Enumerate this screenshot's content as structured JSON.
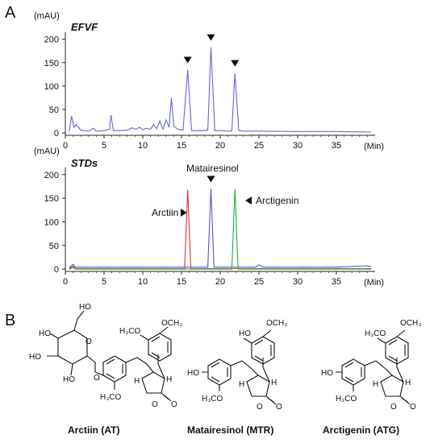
{
  "panels": {
    "a": "A",
    "b": "B"
  },
  "chart_data": [
    {
      "type": "line",
      "title": "EFVF",
      "ylabel": "(mAU)",
      "xlabel": "(Min)",
      "xlim": [
        0,
        40
      ],
      "ylim": [
        -5,
        215
      ],
      "xticks": [
        0,
        5,
        10,
        15,
        20,
        25,
        30,
        35
      ],
      "yticks": [
        0,
        50,
        100,
        150,
        200
      ],
      "markers": [
        15.8,
        18.8,
        21.9
      ],
      "series": [
        {
          "color": "#6666dd",
          "x": [
            0.5,
            0.8,
            1.1,
            1.4,
            2,
            3,
            3.6,
            4,
            5,
            5.7,
            5.9,
            6.2,
            7,
            8,
            8.6,
            9.1,
            9.6,
            10,
            10.4,
            11,
            11.4,
            11.8,
            12.2,
            12.6,
            13,
            13.4,
            13.7,
            14,
            14.5,
            15.2,
            15.8,
            16.3,
            17,
            18,
            18.4,
            18.8,
            19.3,
            20,
            21,
            21.5,
            21.9,
            22.4,
            23,
            25,
            30,
            35,
            39.5
          ],
          "y": [
            3,
            36,
            12,
            18,
            6,
            4,
            10,
            4,
            5,
            8,
            38,
            5,
            5,
            6,
            11,
            8,
            12,
            7,
            10,
            8,
            18,
            9,
            25,
            8,
            28,
            12,
            75,
            15,
            8,
            6,
            135,
            5,
            5,
            5,
            6,
            183,
            5,
            5,
            4,
            4,
            128,
            5,
            4,
            4,
            3,
            3,
            2
          ]
        }
      ]
    },
    {
      "type": "line",
      "title": "STDs",
      "ylabel": "(mAU)",
      "xlabel": "(Min)",
      "xlim": [
        0,
        40
      ],
      "ylim": [
        -5,
        215
      ],
      "xticks": [
        0,
        5,
        10,
        15,
        20,
        25,
        30,
        35
      ],
      "yticks": [
        0,
        50,
        100,
        150,
        200
      ],
      "markers": [
        18.8
      ],
      "annotations": [
        {
          "text": "Arctiin",
          "x": 15.8,
          "y": 100
        },
        {
          "text": "Matairesinol",
          "x": 18.8,
          "y": 190
        },
        {
          "text": "Arctigenin",
          "x": 21.9,
          "y": 150
        }
      ],
      "series": [
        {
          "color": "#dd3333",
          "x": [
            0.5,
            1,
            1.3,
            5,
            10,
            15.4,
            15.8,
            16.2,
            20,
            30,
            39.5
          ],
          "y": [
            1,
            6,
            1,
            1,
            1,
            1,
            168,
            1,
            1,
            1,
            1
          ]
        },
        {
          "color": "#5555cc",
          "x": [
            0.5,
            1,
            1.3,
            5,
            10,
            15,
            18.4,
            18.8,
            19.2,
            22,
            24.6,
            25,
            25.5,
            30,
            35,
            39,
            39.5
          ],
          "y": [
            3,
            10,
            4,
            4,
            4,
            4,
            4,
            170,
            4,
            4,
            4,
            9,
            4,
            4,
            4,
            7,
            5
          ]
        },
        {
          "color": "#22aa44",
          "x": [
            0.5,
            1,
            1.3,
            5,
            10,
            15,
            21.5,
            21.9,
            22.3,
            30,
            39.5
          ],
          "y": [
            0,
            3,
            0,
            0,
            0,
            0,
            0,
            170,
            0,
            0,
            0
          ]
        }
      ]
    }
  ],
  "structures": [
    {
      "label": "Arctiin (AT)"
    },
    {
      "label": "Matairesinol (MTR)"
    },
    {
      "label": "Arctigenin (ATG)"
    }
  ],
  "atoms": {
    "ho": "HO",
    "oh": "OH",
    "h3co": "H₃CO",
    "och3": "OCH₃",
    "h": "H",
    "o": "O"
  }
}
